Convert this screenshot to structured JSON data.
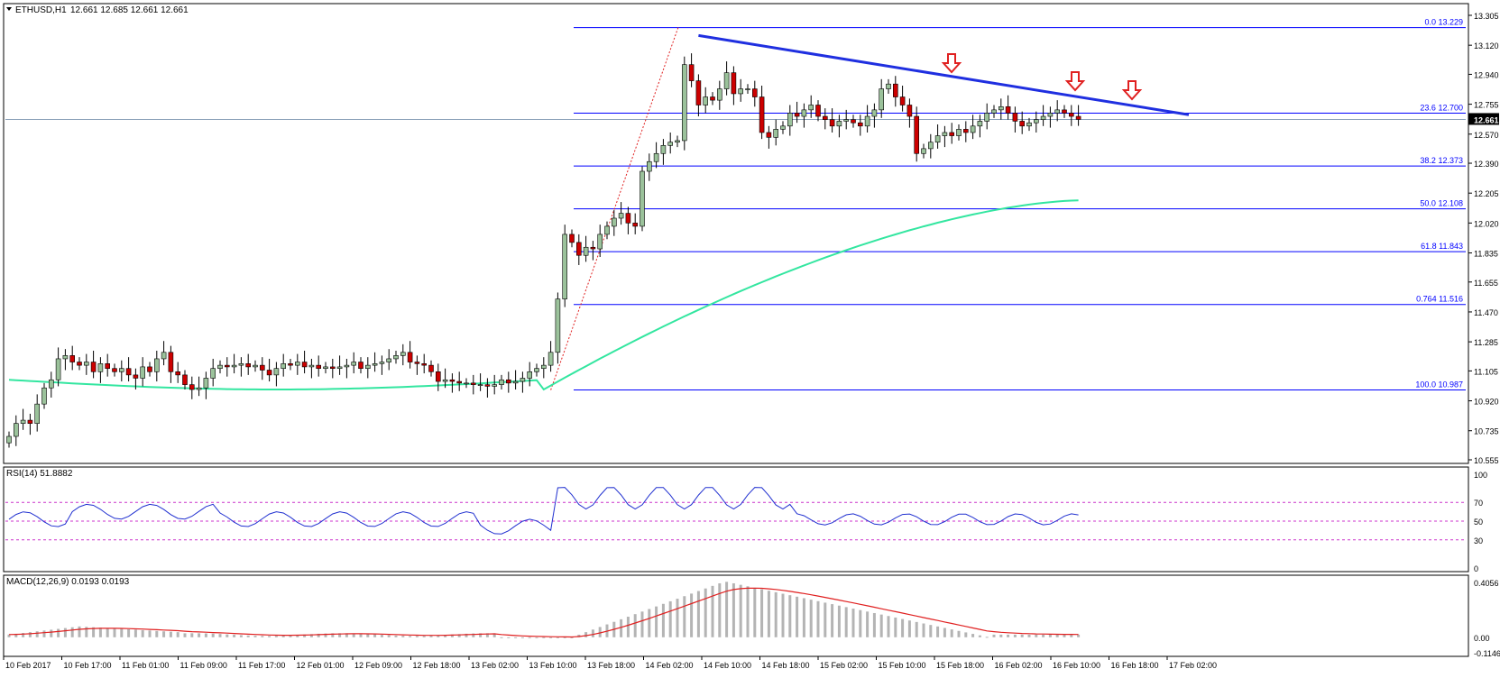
{
  "header": {
    "symbol_label": "ETHUSD,H1",
    "ohlc_label": "12.661 12.685 12.661 12.661",
    "rsi_label": "RSI(14) 51.8882",
    "macd_label": "MACD(12,26,9) 0.0193 0.0193"
  },
  "price_axis": {
    "ticks": [
      "13.305",
      "13.120",
      "12.940",
      "12.755",
      "12.570",
      "12.390",
      "12.205",
      "12.020",
      "11.835",
      "11.655",
      "11.470",
      "11.285",
      "11.105",
      "10.920",
      "10.735",
      "10.555"
    ],
    "current_price": "12.661"
  },
  "rsi_axis": {
    "ticks": [
      "100",
      "70",
      "50",
      "30",
      "0"
    ]
  },
  "macd_axis": {
    "ticks": [
      "0.4056",
      "0.00",
      "-0.1146"
    ]
  },
  "time_axis": {
    "labels": [
      "10 Feb 2017",
      "10 Feb 17:00",
      "11 Feb 01:00",
      "11 Feb 09:00",
      "11 Feb 17:00",
      "12 Feb 01:00",
      "12 Feb 09:00",
      "12 Feb 18:00",
      "13 Feb 02:00",
      "13 Feb 10:00",
      "13 Feb 18:00",
      "14 Feb 02:00",
      "14 Feb 10:00",
      "14 Feb 18:00",
      "15 Feb 02:00",
      "15 Feb 10:00",
      "15 Feb 18:00",
      "16 Feb 02:00",
      "16 Feb 10:00",
      "16 Feb 18:00",
      "17 Feb 02:00"
    ]
  },
  "fib_levels": [
    {
      "ratio": "0.0",
      "price": "13.229"
    },
    {
      "ratio": "23.6",
      "price": "12.700"
    },
    {
      "ratio": "38.2",
      "price": "12.373"
    },
    {
      "ratio": "50.0",
      "price": "12.108"
    },
    {
      "ratio": "61.8",
      "price": "11.843"
    },
    {
      "ratio": "0.764",
      "price": "11.516"
    },
    {
      "ratio": "100.0",
      "price": "10.987"
    }
  ],
  "colors": {
    "bull_fill": "#9bc29b",
    "bear_fill": "#cc0000",
    "wick": "#000000",
    "fib_line": "#0000ff",
    "trendline": "#1f2fe0",
    "moving_average": "#33e6a0",
    "rsi_line": "#2030d0",
    "rsi_levels": "#cc33cc",
    "macd_hist": "#b4b4b4",
    "macd_signal": "#e02020",
    "arrow": "#e02020",
    "retrace_line": "#e02020"
  },
  "chart_data": {
    "type": "candlestick",
    "symbol": "ETHUSD",
    "timeframe": "H1",
    "price_ylim": [
      10.555,
      13.305
    ],
    "candle_closes": [
      10.7,
      10.78,
      10.8,
      10.78,
      10.9,
      11.0,
      11.05,
      11.18,
      11.2,
      11.16,
      11.14,
      11.16,
      11.1,
      11.15,
      11.12,
      11.1,
      11.12,
      11.08,
      11.06,
      11.13,
      11.1,
      11.18,
      11.22,
      11.1,
      11.08,
      11.02,
      10.99,
      11.0,
      11.06,
      11.12,
      11.14,
      11.13,
      11.14,
      11.15,
      11.13,
      11.14,
      11.11,
      11.08,
      11.12,
      11.15,
      11.14,
      11.16,
      11.13,
      11.14,
      11.12,
      11.13,
      11.12,
      11.13,
      11.14,
      11.16,
      11.12,
      11.14,
      11.15,
      11.16,
      11.18,
      11.2,
      11.22,
      11.16,
      11.15,
      11.14,
      11.1,
      11.04,
      11.05,
      11.04,
      11.03,
      11.03,
      11.02,
      11.02,
      11.01,
      11.02,
      11.05,
      11.03,
      11.04,
      11.06,
      11.1,
      11.12,
      11.14,
      11.22,
      11.55,
      11.95,
      11.9,
      11.82,
      11.87,
      11.86,
      11.95,
      12.0,
      12.05,
      12.08,
      12.02,
      12.0,
      12.34,
      12.4,
      12.45,
      12.5,
      12.52,
      12.53,
      13.0,
      12.9,
      12.75,
      12.8,
      12.78,
      12.85,
      12.95,
      12.82,
      12.85,
      12.85,
      12.8,
      12.58,
      12.55,
      12.6,
      12.62,
      12.7,
      12.68,
      12.72,
      12.75,
      12.68,
      12.66,
      12.62,
      12.65,
      12.66,
      12.64,
      12.62,
      12.68,
      12.72,
      12.85,
      12.88,
      12.8,
      12.75,
      12.68,
      12.45,
      12.48,
      12.52,
      12.56,
      12.58,
      12.56,
      12.6,
      12.58,
      12.62,
      12.65,
      12.7,
      12.72,
      12.74,
      12.7,
      12.65,
      12.62,
      12.64,
      12.66,
      12.68,
      12.7,
      12.72,
      12.7,
      12.68,
      12.661
    ],
    "moving_average_range": [
      11.05,
      12.16
    ],
    "trendline": {
      "from": 13.18,
      "to": 12.69
    },
    "rsi": {
      "period": 14,
      "value": 51.8882,
      "levels": [
        70,
        50,
        30
      ],
      "ylim": [
        0,
        100
      ]
    },
    "macd": {
      "params": [
        12,
        26,
        9
      ],
      "main": 0.0193,
      "signal": 0.0193,
      "ylim": [
        -0.1146,
        0.4056
      ]
    }
  }
}
